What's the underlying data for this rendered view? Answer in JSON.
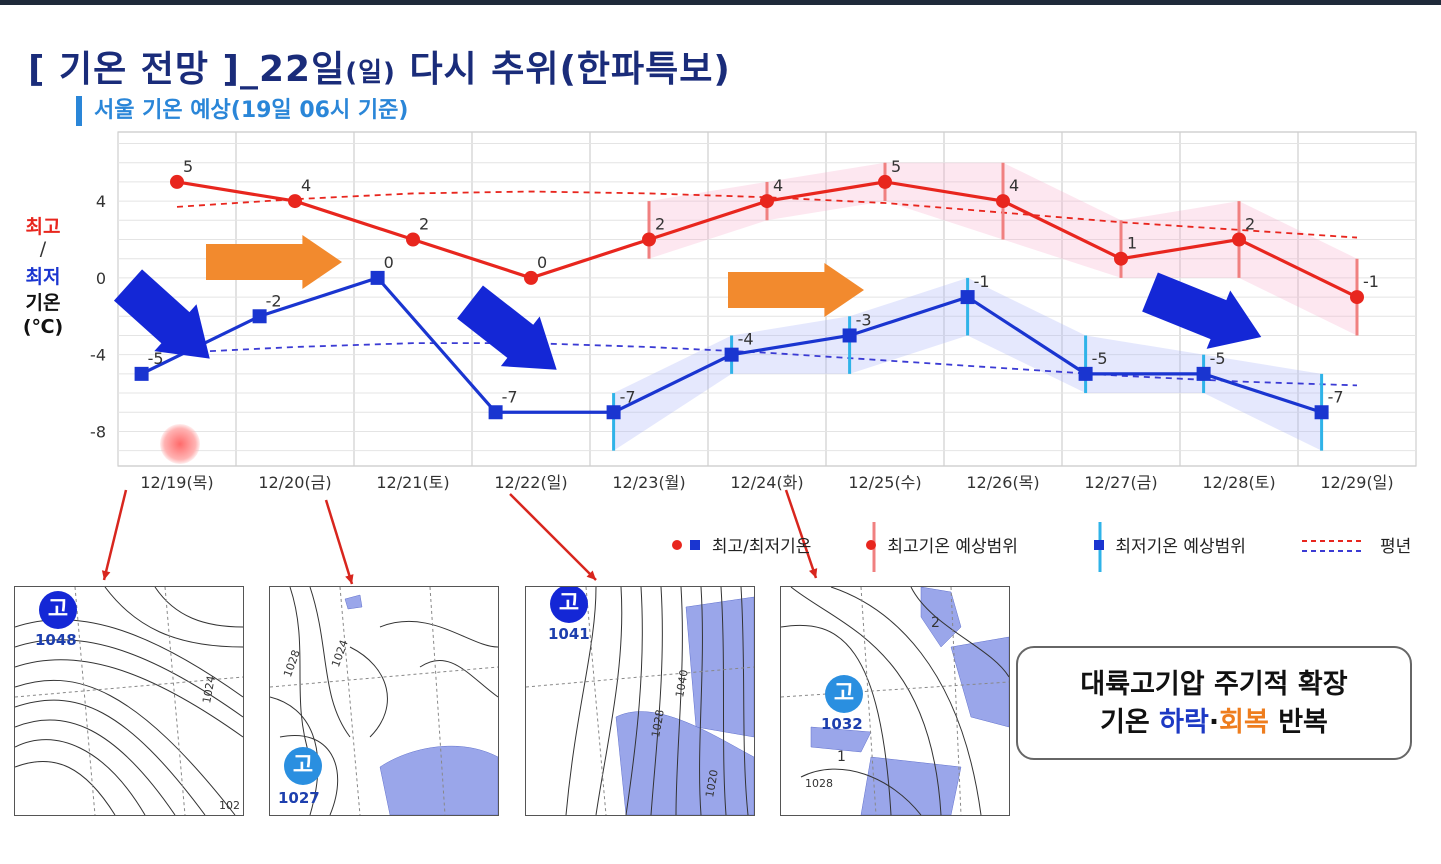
{
  "title": {
    "main": "[ 기온 전망 ]_22일",
    "paren": "(일)",
    "rest": " 다시 추위(한파특보)"
  },
  "subtitle": "서울 기온 예상(19일 06시 기준)",
  "y_axis_label": {
    "line1": "최고",
    "line2": "/",
    "line3": "최저",
    "line4": "기온",
    "line5": "(℃)"
  },
  "chart_data": {
    "type": "line",
    "categories": [
      "12/19(목)",
      "12/20(금)",
      "12/21(토)",
      "12/22(일)",
      "12/23(월)",
      "12/24(화)",
      "12/25(수)",
      "12/26(목)",
      "12/27(금)",
      "12/28(토)",
      "12/29(일)"
    ],
    "yticks": [
      4,
      0,
      -4,
      -8
    ],
    "ylim": [
      -9.8,
      7.6
    ],
    "grid": true,
    "series": [
      {
        "name": "최고/최저기온",
        "kind": "max",
        "color": "#e8261e",
        "x_index": [
          0.5,
          1.5,
          2.5,
          3.5,
          4.5,
          5.5,
          6.5,
          7.5,
          8.5,
          9.5,
          10.5
        ],
        "values": [
          5,
          4,
          2,
          0,
          2,
          4,
          5,
          4,
          1,
          2,
          -1
        ],
        "labels": [
          "5",
          "4",
          "2",
          "0",
          "2",
          "4",
          "5",
          "4",
          "1",
          "2",
          "-1"
        ],
        "range_low": [
          null,
          null,
          null,
          null,
          1,
          3,
          4,
          2,
          0,
          0,
          -3
        ],
        "range_high": [
          null,
          null,
          null,
          null,
          4,
          5,
          6,
          6,
          3,
          4,
          1
        ]
      },
      {
        "name": "최고/최저기온",
        "kind": "min",
        "color": "#1a35d0",
        "x_index": [
          0.2,
          1.2,
          2.2,
          3.2,
          4.2,
          5.2,
          6.2,
          7.2,
          8.2,
          9.2,
          10.2
        ],
        "values": [
          -5,
          -2,
          0,
          -7,
          -7,
          -4,
          -3,
          -1,
          -5,
          -5,
          -7
        ],
        "labels": [
          "-5",
          "-2",
          "0",
          "-7",
          "-7",
          "-4",
          "-3",
          "-1",
          "-5",
          "-5",
          "-7"
        ],
        "range_low": [
          null,
          null,
          null,
          null,
          -9,
          -5,
          -5,
          -3,
          -6,
          -6,
          -9
        ],
        "range_high": [
          null,
          null,
          null,
          null,
          -6,
          -3,
          -2,
          0,
          -3,
          -4,
          -5
        ]
      }
    ],
    "normals": [
      {
        "name": "평년",
        "kind": "max_normal",
        "color": "#e8261e",
        "values": [
          3.7,
          4.1,
          4.4,
          4.5,
          4.4,
          4.2,
          3.9,
          3.4,
          2.9,
          2.5,
          2.1
        ]
      },
      {
        "name": "평년",
        "kind": "min_normal",
        "color": "#3b3bd4",
        "values": [
          -3.9,
          -3.6,
          -3.4,
          -3.4,
          -3.6,
          -3.9,
          -4.3,
          -4.7,
          -5.1,
          -5.4,
          -5.6
        ]
      }
    ],
    "legend": {
      "placement": "bottom-right",
      "items": [
        "최고/최저기온",
        "최고기온 예상범위",
        "최저기온 예상범위",
        "평년"
      ]
    },
    "arrows": [
      {
        "direction": "down",
        "color": "#1427d6"
      },
      {
        "direction": "right",
        "color": "#f28a2e"
      },
      {
        "direction": "down",
        "color": "#1427d6"
      },
      {
        "direction": "right",
        "color": "#f28a2e"
      },
      {
        "direction": "down",
        "color": "#1427d6"
      }
    ]
  },
  "maps": [
    {
      "badge": "고",
      "pressure": "1048",
      "badge_color": "#1427d6",
      "isobar_labels": [
        "1024",
        "102"
      ]
    },
    {
      "badge": "고",
      "pressure": "1027",
      "badge_color": "#2a8fe0",
      "isobar_labels": [
        "1028",
        "1024"
      ]
    },
    {
      "badge": "고",
      "pressure": "1041",
      "badge_color": "#1427d6",
      "isobar_labels": [
        "1040",
        "1028",
        "1020"
      ]
    },
    {
      "badge": "고",
      "pressure": "1032",
      "badge_color": "#2a8fe0",
      "isobar_labels": [
        "1028",
        "2",
        "1"
      ]
    }
  ],
  "note": {
    "line1": "대륙고기압 주기적 확장",
    "line2_a": "기온 ",
    "line2_b": "하락",
    "line2_c": "·",
    "line2_d": "회복",
    "line2_e": " 반복"
  },
  "colors": {
    "title": "#1a2c7a",
    "subtitle": "#2a86d8",
    "max": "#e8261e",
    "min": "#1a35d0",
    "orange": "#ee7d1e"
  }
}
